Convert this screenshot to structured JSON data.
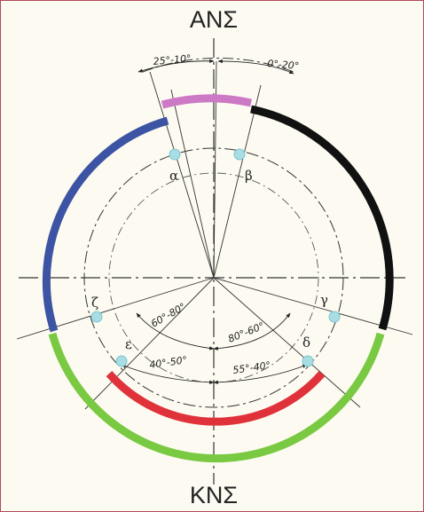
{
  "diagram": {
    "top_label": "ΑΝΣ",
    "bottom_label": "ΚΝΣ",
    "arcs": [
      {
        "name": "top-sector-arc",
        "color": "#cc79c6"
      },
      {
        "name": "right-sector-arc",
        "color": "#111111"
      },
      {
        "name": "left-sector-arc",
        "color": "#3c54a3"
      },
      {
        "name": "bottom-sector-arc",
        "color": "#7ac943"
      },
      {
        "name": "bottom-inner-arc",
        "color": "#e0323a"
      }
    ],
    "points": [
      {
        "id": "alpha",
        "label": "α"
      },
      {
        "id": "beta",
        "label": "β"
      },
      {
        "id": "gamma",
        "label": "γ"
      },
      {
        "id": "delta",
        "label": "δ"
      },
      {
        "id": "epsilon",
        "label": "ε"
      },
      {
        "id": "zeta",
        "label": "ζ"
      }
    ],
    "angle_labels": {
      "top_left": "25°-10°",
      "top_right": "0°-20°",
      "left_mid": "60°-80°",
      "right_mid": "80°-60°",
      "left_low": "40°-50°",
      "right_low": "55°-40°"
    },
    "point_color": "#a8dde3"
  }
}
